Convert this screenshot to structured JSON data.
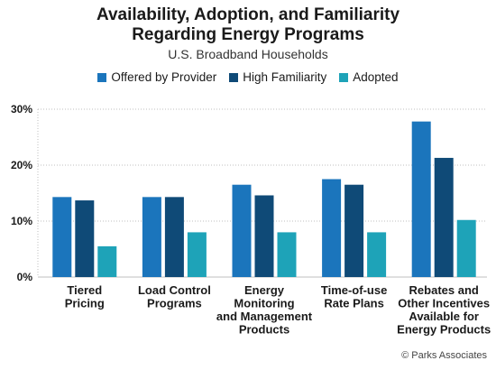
{
  "title_line1": "Availability, Adoption, and Familiarity",
  "title_line2": "Regarding Energy Programs",
  "subtitle": "U.S. Broadband Households",
  "footer": "© Parks Associates",
  "colors": {
    "offered": "#1b75bc",
    "familiarity": "#0f4a77",
    "adopted": "#1ea3b8",
    "grid": "#bfbfbf",
    "axis_label": "#1a1a1a"
  },
  "chart_data": {
    "type": "bar",
    "title": "Availability, Adoption, and Familiarity Regarding Energy Programs",
    "subtitle": "U.S. Broadband Households",
    "categories": [
      [
        "Tiered",
        "Pricing"
      ],
      [
        "Load Control",
        "Programs"
      ],
      [
        "Energy",
        "Monitoring",
        "and Management",
        "Products"
      ],
      [
        "Time-of-use",
        "Rate Plans"
      ],
      [
        "Rebates and",
        "Other Incentives",
        "Available for",
        "Energy Products"
      ]
    ],
    "series": [
      {
        "name": "Offered by Provider",
        "values": [
          14.3,
          14.3,
          16.5,
          17.5,
          27.8
        ]
      },
      {
        "name": "High Familiarity",
        "values": [
          13.7,
          14.3,
          14.6,
          16.5,
          21.3
        ]
      },
      {
        "name": "Adopted",
        "values": [
          5.5,
          8.0,
          8.0,
          8.0,
          10.2
        ]
      }
    ],
    "ylim": [
      0,
      30
    ],
    "yticks": [
      0,
      10,
      20,
      30
    ],
    "ytick_labels": [
      "0%",
      "10%",
      "20%",
      "30%"
    ],
    "xlabel": "",
    "ylabel": "",
    "grid": true,
    "legend_position": "top"
  }
}
